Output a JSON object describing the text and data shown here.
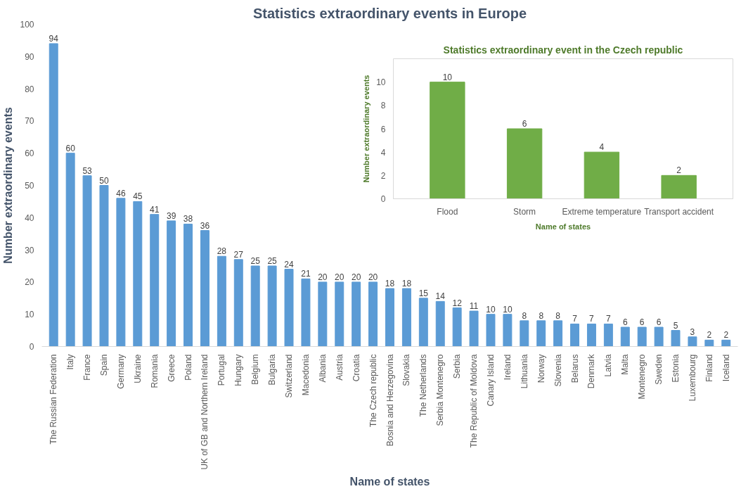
{
  "chart_data": [
    {
      "type": "bar",
      "title": "Statistics extraordinary events in Europe",
      "xlabel": "Name of states",
      "ylabel": "Number extraordinary events",
      "categories": [
        "The Russian Federation",
        "Italy",
        "France",
        "Spain",
        "Germany",
        "Ukraine",
        "Romania",
        "Greece",
        "Poland",
        "UK of GB and Northern Ireland",
        "Portugal",
        "Hungary",
        "Belgium",
        "Bulgaria",
        "Switzerland",
        "Macedonia",
        "Albania",
        "Austria",
        "Croatia",
        "The Czech republic",
        "Bosnia and Herzegovina",
        "Slovakia",
        "The Netherlands",
        "Serbia Montenegro",
        "Serbia",
        "The Republic of Moldova",
        "Canary Island",
        "Ireland",
        "Lithuania",
        "Norway",
        "Slovenia",
        "Belarus",
        "Denmark",
        "Latvia",
        "Malta",
        "Montenegro",
        "Sweden",
        "Estonia",
        "Luxembourg",
        "Finland",
        "Iceland"
      ],
      "values": [
        94,
        60,
        53,
        50,
        46,
        45,
        41,
        39,
        38,
        36,
        28,
        27,
        25,
        25,
        24,
        21,
        20,
        20,
        20,
        20,
        18,
        18,
        15,
        14,
        12,
        11,
        10,
        10,
        8,
        8,
        8,
        7,
        7,
        7,
        6,
        6,
        6,
        5,
        3,
        2,
        2
      ],
      "color": "#5b9bd5",
      "ylim": [
        0,
        100
      ],
      "yticks": [
        0,
        10,
        20,
        30,
        40,
        50,
        60,
        70,
        80,
        90,
        100
      ],
      "data_labels": true,
      "grid": false
    },
    {
      "type": "bar",
      "title": "Statistics extraordinary event in the Czech republic",
      "xlabel": "Name of states",
      "ylabel": "Number extraordinary events",
      "categories": [
        "Flood",
        "Storm",
        "Extreme temperature",
        "Transport accident"
      ],
      "values": [
        10,
        6,
        4,
        2
      ],
      "color": "#70ad47",
      "ylim": [
        0,
        12
      ],
      "yticks": [
        0,
        2,
        4,
        6,
        8,
        10
      ],
      "data_labels": true,
      "grid": false
    }
  ]
}
